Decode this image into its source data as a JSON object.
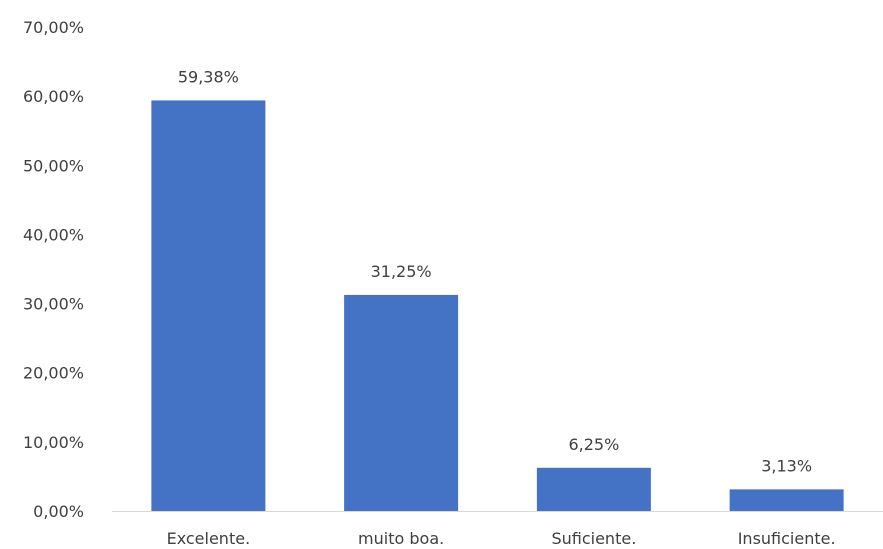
{
  "chart_data": {
    "type": "bar",
    "categories": [
      "Excelente.",
      "muito boa.",
      "Suficiente.",
      "Insuficiente."
    ],
    "values": [
      59.38,
      31.25,
      6.25,
      3.13
    ],
    "data_labels": [
      "59,38%",
      "31,25%",
      "6,25%",
      "3,13%"
    ],
    "title": "",
    "xlabel": "",
    "ylabel": "",
    "ylim": [
      0,
      70
    ],
    "yticks": [
      0,
      10,
      20,
      30,
      40,
      50,
      60,
      70
    ],
    "ytick_labels": [
      "0,00%",
      "10,00%",
      "20,00%",
      "30,00%",
      "40,00%",
      "50,00%",
      "60,00%",
      "70,00%"
    ],
    "grid": false,
    "legend": "none",
    "bar_color": "#4472c4",
    "axis_color": "#d9d9d9",
    "text_color": "#404040"
  }
}
